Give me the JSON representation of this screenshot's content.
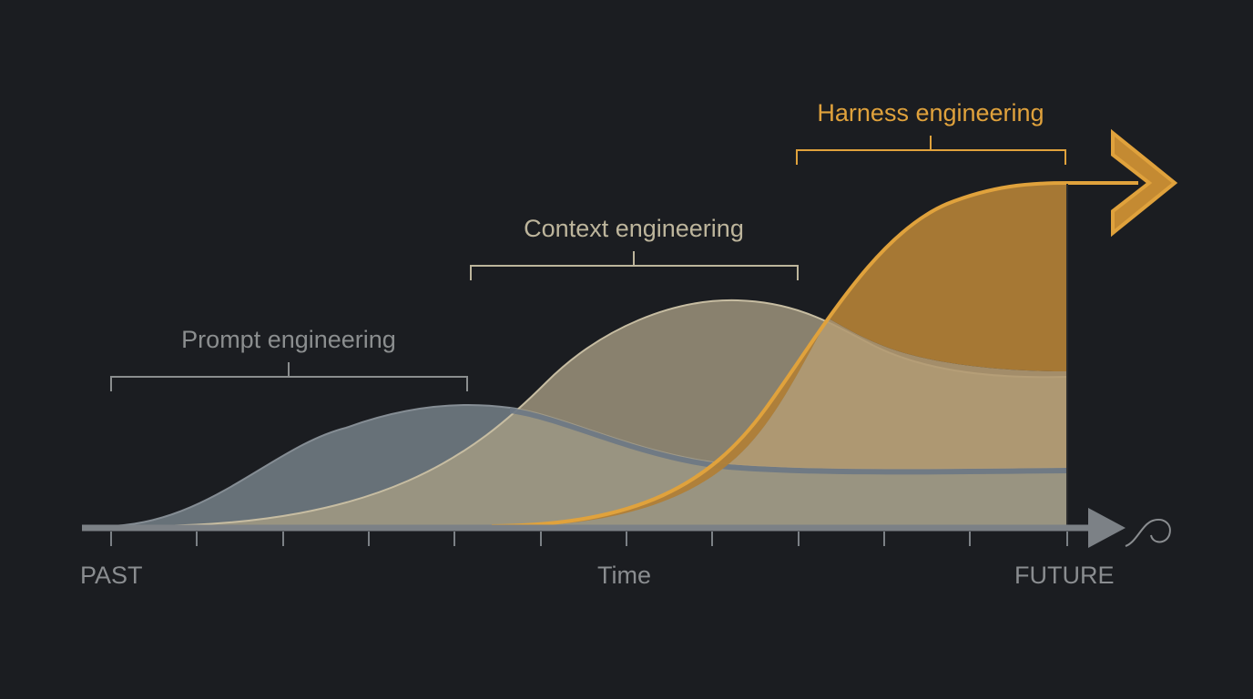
{
  "eras": [
    {
      "label": "Prompt engineering",
      "color": "#8b8e8f"
    },
    {
      "label": "Context engineering",
      "color": "#bdb59c"
    },
    {
      "label": "Harness engineering",
      "color": "#e0a23c"
    }
  ],
  "axis": {
    "start_label": "PAST",
    "middle_label": "Time",
    "end_label": "FUTURE",
    "color": "#7c8186"
  },
  "colors": {
    "background": "#1b1d21",
    "prompt_fill": "#6e7880",
    "context_fill": "#a89d84",
    "harness_fill": "#b5853a",
    "harness_stroke": "#e0a23c"
  }
}
